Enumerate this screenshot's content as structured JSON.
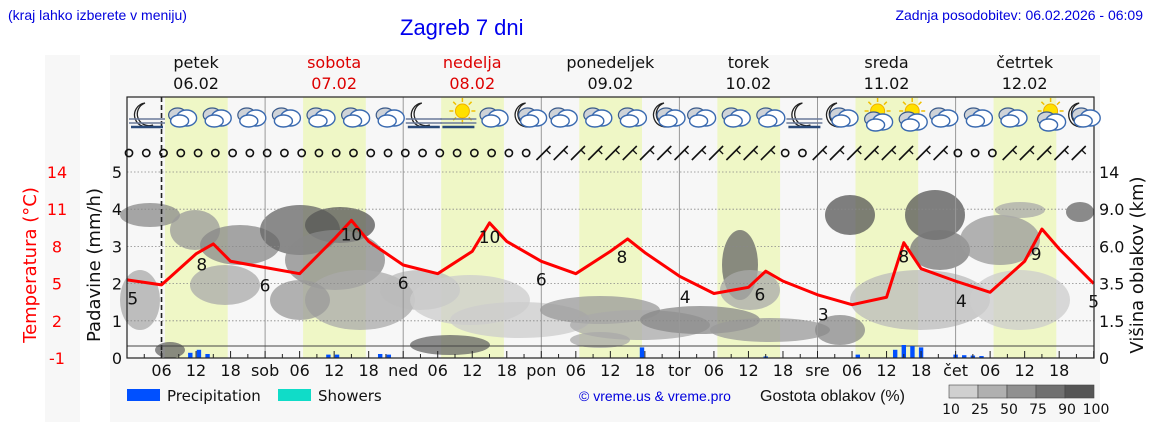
{
  "header": {
    "left_note": "(kraj lahko izberete v meniju)",
    "title": "Zagreb 7 dni",
    "updated": "Zadnja posodobitev: 06.02.2026 - 06:09"
  },
  "colors": {
    "header_blue": "#0000dd",
    "temperature_red": "#ff0000",
    "weekend_red": "#dd0000",
    "daylight_band": "#eff7c6",
    "precipitation": "#0050ff",
    "showers": "#10dcc8",
    "panel_bg": "#f7f7f7"
  },
  "days": [
    {
      "name": "petek",
      "date": "06.02",
      "weekend": false
    },
    {
      "name": "sobota",
      "date": "07.02",
      "weekend": true
    },
    {
      "name": "nedelja",
      "date": "08.02",
      "weekend": true
    },
    {
      "name": "ponedeljek",
      "date": "09.02",
      "weekend": false
    },
    {
      "name": "torek",
      "date": "10.02",
      "weekend": false
    },
    {
      "name": "sreda",
      "date": "11.02",
      "weekend": false
    },
    {
      "name": "četrtek",
      "date": "12.02",
      "weekend": false
    }
  ],
  "x_axis": {
    "day_abbr": [
      "",
      "sob",
      "ned",
      "pon",
      "tor",
      "sre",
      "čet"
    ],
    "hour_labels": [
      "06",
      "12",
      "18"
    ]
  },
  "icons": [
    "moon-fog",
    "cloud-light-rain",
    "cloud-light-rain",
    "cloud",
    "cloud",
    "cloud",
    "cloud-light-rain",
    "cloud-light-rain",
    "moon-fog",
    "sun-fog",
    "cloud",
    "moon-cloud",
    "cloud",
    "cloud-light-rain",
    "cloud",
    "moon-cloud-rain",
    "cloud",
    "cloud",
    "cloud",
    "moon-fog",
    "moon-cloud",
    "sun-cloud-rain",
    "sun-cloud-rain",
    "cloud-light-rain",
    "cloud-light-rain",
    "cloud",
    "sun-cloud",
    "moon-cloud"
  ],
  "wind": {
    "calm_until_hour": 72,
    "barbs_note": "calm (o) days 1-3, then wind barbs from SW/W"
  },
  "legend": {
    "precipitation_label": "Precipitation",
    "showers_label": "Showers",
    "copyright": "© vreme.us & vreme.pro",
    "cloud_density_label": "Gostota oblakov (%)",
    "cloud_density_scale": [
      "10",
      "25",
      "50",
      "75",
      "90",
      "100"
    ]
  },
  "axes": {
    "temperature_label": "Temperatura (°C)",
    "temperature_ticks": [
      "14",
      "11",
      "8",
      "5",
      "2",
      "-1"
    ],
    "precip_label": "Padavine (mm/h)",
    "precip_ticks": [
      "5",
      "4",
      "3",
      "2",
      "1",
      "0"
    ],
    "cloud_height_label": "Višina oblakov (km)",
    "cloud_height_ticks": [
      "14",
      "9.0",
      "6.0",
      "3.5",
      "1.5",
      "0"
    ]
  },
  "chart_data": {
    "type": "line",
    "title": "Zagreb 7 dni",
    "xlabel": "",
    "ylabel": "Temperatura (°C)",
    "ylim": [
      -1,
      14
    ],
    "x_hours": [
      0,
      6,
      12,
      15,
      18,
      24,
      30,
      36,
      39,
      42,
      48,
      54,
      60,
      63,
      66,
      72,
      78,
      84,
      87,
      90,
      96,
      102,
      108,
      111,
      114,
      120,
      126,
      132,
      135,
      138,
      144,
      150,
      156,
      159,
      162,
      168
    ],
    "series": [
      {
        "name": "Temperatura (°C)",
        "values": [
          5.3,
          4.9,
          7.4,
          8.2,
          6.8,
          6.3,
          5.8,
          8.6,
          10.1,
          8.4,
          6.5,
          5.8,
          7.6,
          9.9,
          8.4,
          6.8,
          5.8,
          7.6,
          8.6,
          7.5,
          5.6,
          4.2,
          4.7,
          6.0,
          5.2,
          4.1,
          3.3,
          3.9,
          8.3,
          6.2,
          5.2,
          4.3,
          6.8,
          9.4,
          7.8,
          5.0
        ]
      },
      {
        "name": "Precipitation (mm/h)",
        "x": [
          11,
          12.5,
          14,
          35,
          36.5,
          44,
          45.5,
          89.5,
          111,
          127,
          133.5,
          135,
          136.5,
          138,
          144,
          145.5,
          147,
          148.5
        ],
        "values": [
          0.35,
          0.6,
          0.25,
          0.2,
          0.2,
          0.25,
          0.2,
          0.8,
          0.05,
          0.2,
          0.6,
          1.0,
          0.9,
          0.8,
          0.2,
          0.15,
          0.12,
          0.08
        ]
      }
    ],
    "temperature_point_labels": [
      {
        "hour": 1,
        "value": "5"
      },
      {
        "hour": 13,
        "value": "8"
      },
      {
        "hour": 24,
        "value": "6"
      },
      {
        "hour": 39,
        "value": "10"
      },
      {
        "hour": 48,
        "value": "6"
      },
      {
        "hour": 63,
        "value": "10"
      },
      {
        "hour": 72,
        "value": "6"
      },
      {
        "hour": 86,
        "value": "8"
      },
      {
        "hour": 97,
        "value": "4"
      },
      {
        "hour": 110,
        "value": "6"
      },
      {
        "hour": 121,
        "value": "3"
      },
      {
        "hour": 135,
        "value": "8"
      },
      {
        "hour": 145,
        "value": "4"
      },
      {
        "hour": 158,
        "value": "9"
      },
      {
        "hour": 168,
        "value": "5"
      }
    ],
    "legend_position": "bottom",
    "grid": true
  }
}
